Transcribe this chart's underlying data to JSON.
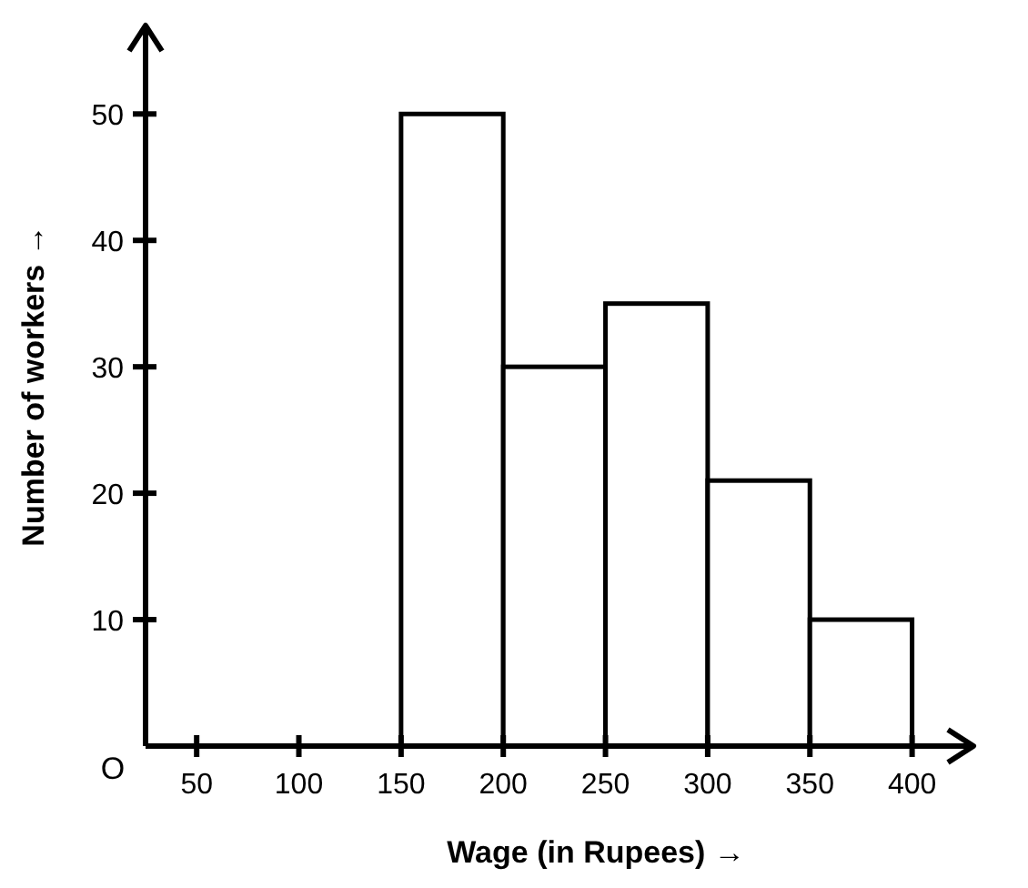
{
  "chart_data": {
    "type": "histogram",
    "xlabel": "Wage (in Rupees) →",
    "ylabel": "Number of workers →",
    "bins": [
      150,
      200,
      250,
      300,
      350,
      400
    ],
    "values": [
      50,
      30,
      35,
      21,
      10
    ],
    "color": "#ffffff",
    "xlim": [
      25,
      430
    ],
    "xticks": [
      50,
      100,
      150,
      200,
      250,
      300,
      350,
      400
    ],
    "ylim": [
      0,
      57
    ],
    "yticks": [
      10,
      20,
      30,
      40,
      50
    ],
    "annotations": [
      "O"
    ],
    "grid": false
  }
}
